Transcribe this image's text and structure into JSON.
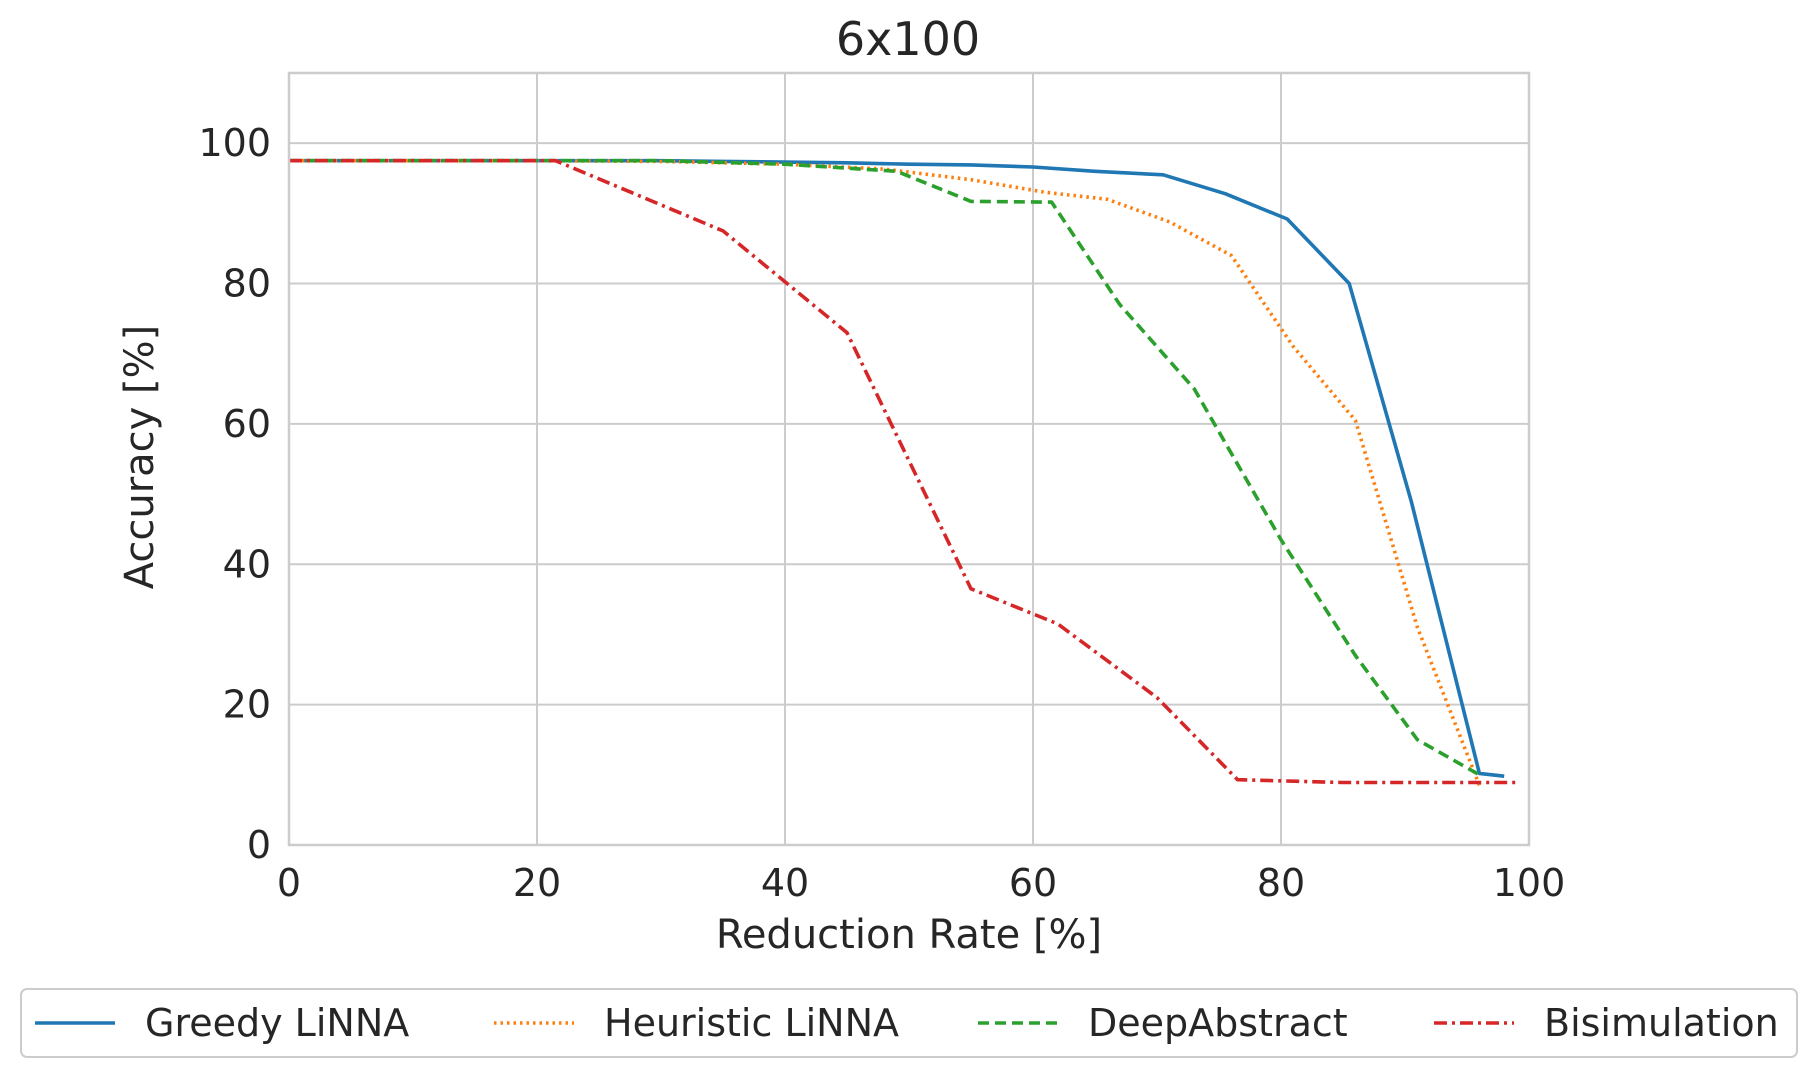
{
  "chart_data": {
    "type": "line",
    "title": "6x100",
    "xlabel": "Reduction Rate [%]",
    "ylabel": "Accuracy [%]",
    "xlim": [
      0,
      100
    ],
    "ylim": [
      0,
      110
    ],
    "xticks": [
      0,
      20,
      40,
      60,
      80,
      100
    ],
    "yticks": [
      0,
      20,
      40,
      60,
      80,
      100
    ],
    "grid": true,
    "legend_position": "bottom",
    "series": [
      {
        "name": "Greedy LiNNA",
        "color": "#1f77b4",
        "style": "solid",
        "x": [
          0,
          10,
          20,
          30,
          35,
          45,
          50,
          55,
          60,
          65,
          70.5,
          75.5,
          80.5,
          85.5,
          90.5,
          96,
          98
        ],
        "y": [
          97.5,
          97.5,
          97.5,
          97.5,
          97.4,
          97.2,
          97.0,
          96.9,
          96.6,
          96.0,
          95.5,
          92.8,
          89.2,
          80.0,
          49.0,
          10.2,
          9.8
        ]
      },
      {
        "name": "Heuristic LiNNA",
        "color": "#ff7f0e",
        "style": "dotted",
        "x": [
          0,
          10,
          20,
          30,
          40,
          48,
          55,
          61,
          66,
          71,
          76,
          81,
          86,
          91,
          96
        ],
        "y": [
          97.5,
          97.5,
          97.5,
          97.4,
          97.0,
          96.3,
          94.8,
          93.0,
          92.0,
          88.8,
          84.0,
          71.0,
          60.5,
          31.0,
          8.5
        ]
      },
      {
        "name": "DeepAbstract",
        "color": "#2ca02c",
        "style": "dashed",
        "x": [
          0,
          10,
          20,
          30,
          40,
          49,
          55,
          61.5,
          67,
          73,
          80,
          86,
          91,
          96
        ],
        "y": [
          97.5,
          97.5,
          97.5,
          97.5,
          97.0,
          96.0,
          91.7,
          91.6,
          77.0,
          65.0,
          43.5,
          27.0,
          15.0,
          10.0
        ]
      },
      {
        "name": "Bisimulation",
        "color": "#d62728",
        "style": "dashdot",
        "x": [
          0,
          10,
          21.5,
          35,
          45,
          55,
          62,
          70,
          76.5,
          85,
          95,
          99
        ],
        "y": [
          97.5,
          97.5,
          97.5,
          87.5,
          73.0,
          36.5,
          31.5,
          21.0,
          9.3,
          8.9,
          8.9,
          8.9
        ]
      }
    ]
  }
}
